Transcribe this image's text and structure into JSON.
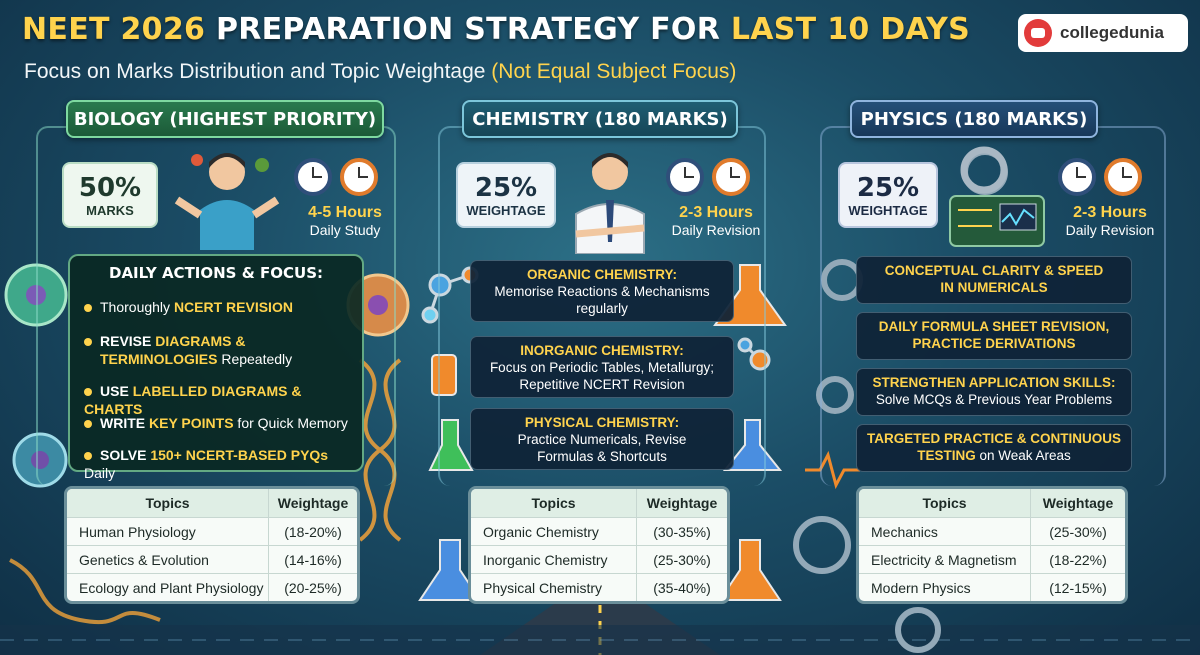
{
  "header": {
    "title_pre": "NEET 2026",
    "title_mid": " PREPARATION STRATEGY FOR ",
    "title_post": "LAST 10 DAYS",
    "subtitle_pre": "Focus on Marks Distribution and Topic Weightage ",
    "subtitle_hl": "(Not Equal Subject Focus)",
    "brand": "collegedunia"
  },
  "biology": {
    "header": "BIOLOGY (HIGHEST PRIORITY)",
    "pct": "50%",
    "pct_label": "MARKS",
    "hours": "4-5 Hours",
    "hours_label": "Daily Study",
    "focus_title": "DAILY ACTIONS & FOCUS:",
    "bullets": [
      {
        "a": "Thoroughly ",
        "b": "NCERT REVISION",
        "c": ""
      },
      {
        "a": "REVISE ",
        "b": "DIAGRAMS &",
        "c": ""
      },
      {
        "a": "",
        "b": "TERMINOLOGIES",
        "c": " Repeatedly"
      },
      {
        "a": "USE ",
        "b": "LABELLED DIAGRAMS & CHARTS",
        "c": ""
      },
      {
        "a": "WRITE ",
        "b": "KEY POINTS",
        "c": " for Quick Memory"
      },
      {
        "a": "SOLVE ",
        "b": "150+ NCERT-BASED PYQs",
        "c": " Daily"
      }
    ],
    "table": {
      "col1": "Topics",
      "col2": "Weightage",
      "rows": [
        {
          "topic": "Human Physiology",
          "w": "(18-20%)"
        },
        {
          "topic": "Genetics & Evolution",
          "w": "(14-16%)"
        },
        {
          "topic": "Ecology and Plant Physiology",
          "w": "(20-25%)"
        }
      ]
    }
  },
  "chemistry": {
    "header": "CHEMISTRY (180 MARKS)",
    "pct": "25%",
    "pct_label": "WEIGHTAGE",
    "hours": "2-3 Hours",
    "hours_label": "Daily Revision",
    "cards": [
      {
        "title": "ORGANIC CHEMISTRY:",
        "l1": "Memorise Reactions & Mechanisms",
        "l2": "regularly"
      },
      {
        "title": "INORGANIC CHEMISTRY:",
        "l1": "Focus on Periodic Tables, Metallurgy;",
        "l2": "Repetitive NCERT Revision"
      },
      {
        "title": "PHYSICAL CHEMISTRY:",
        "l1": "Practice Numericals, Revise",
        "l2": "Formulas & Shortcuts"
      }
    ],
    "table": {
      "col1": "Topics",
      "col2": "Weightage",
      "rows": [
        {
          "topic": "Organic Chemistry",
          "w": "(30-35%)"
        },
        {
          "topic": "Inorganic Chemistry",
          "w": "(25-30%)"
        },
        {
          "topic": "Physical Chemistry",
          "w": "(35-40%)"
        }
      ]
    }
  },
  "physics": {
    "header": "PHYSICS (180 MARKS)",
    "pct": "25%",
    "pct_label": "WEIGHTAGE",
    "hours": "2-3 Hours",
    "hours_label": "Daily Revision",
    "cards": [
      {
        "title": "CONCEPTUAL CLARITY & SPEED",
        "l1": "IN NUMERICALS",
        "l1_style": "title"
      },
      {
        "title": "DAILY FORMULA SHEET REVISION,",
        "l1": "PRACTICE DERIVATIONS",
        "l1_style": "title"
      },
      {
        "title": "STRENGTHEN APPLICATION SKILLS:",
        "l1": "Solve MCQs & Previous Year Problems",
        "l1_style": "desc"
      },
      {
        "title": "TARGETED PRACTICE & CONTINUOUS",
        "l1a": "TESTING",
        "l1b": " on Weak Areas",
        "l1_style": "mixed"
      }
    ],
    "table": {
      "col1": "Topics",
      "col2": "Weightage",
      "rows": [
        {
          "topic": "Mechanics",
          "w": "(25-30%)"
        },
        {
          "topic": "Electricity & Magnetism",
          "w": "(18-22%)"
        },
        {
          "topic": "Modern Physics",
          "w": "(12-15%)"
        }
      ]
    }
  },
  "colors": {
    "accent_yellow": "#ffd34d",
    "bio_green": "#2a7a4e",
    "chem_teal": "#1f5e73",
    "phy_blue": "#244f78"
  }
}
